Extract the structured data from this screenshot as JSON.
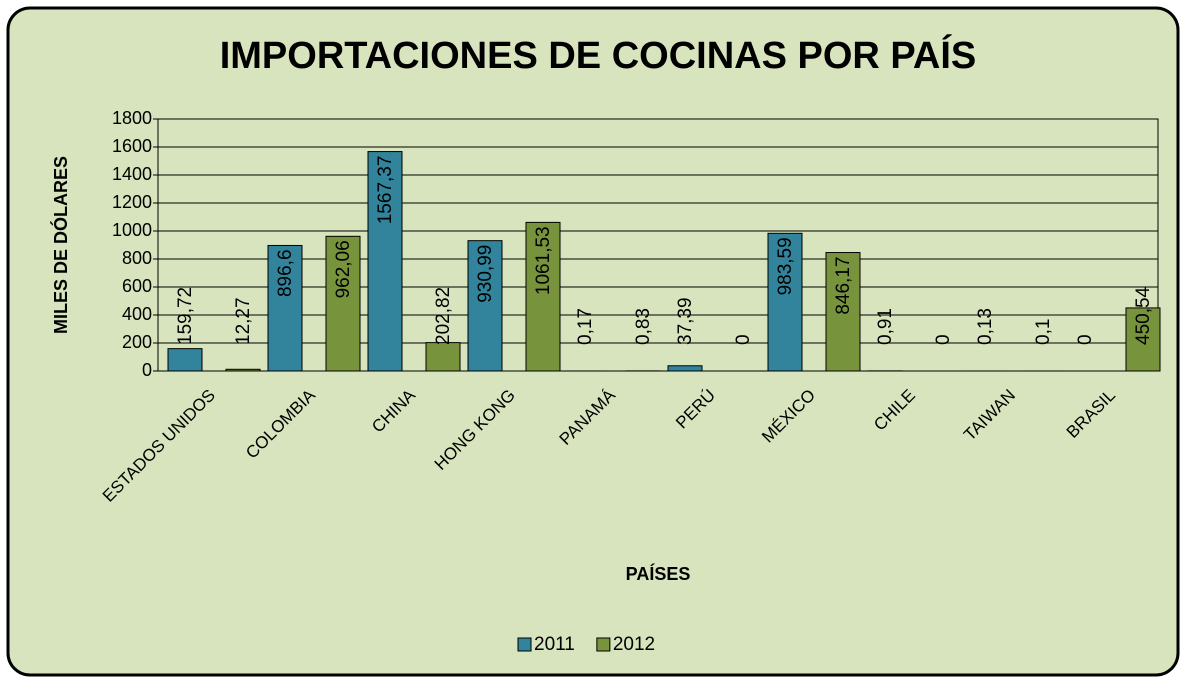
{
  "chart_data": {
    "type": "bar",
    "title": "IMPORTACIONES DE COCINAS POR PAÍS",
    "x_label": "PAÍSES",
    "y_label": "MILES DE DÓLARES",
    "categories": [
      "ESTADOS UNIDOS",
      "COLOMBIA",
      "CHINA",
      "HONG KONG",
      "PANAMÁ",
      "PERÚ",
      "MÉXICO",
      "CHILE",
      "TAIWAN",
      "BRASIL"
    ],
    "series": [
      {
        "name": "2011",
        "color": "#31849b",
        "values": [
          159.72,
          896.6,
          1567.37,
          930.99,
          0.17,
          37.39,
          983.59,
          0.91,
          0.13,
          0
        ],
        "value_labels": [
          "159,72",
          "896,6",
          "1567,37",
          "930,99",
          "0,17",
          "37,39",
          "983,59",
          "0,91",
          "0,13",
          "0"
        ]
      },
      {
        "name": "2012",
        "color": "#77933c",
        "values": [
          12.27,
          962.06,
          202.82,
          1061.53,
          0.83,
          0,
          846.17,
          0,
          0.1,
          450.54
        ],
        "value_labels": [
          "12,27",
          "962,06",
          "202,82",
          "1061,53",
          "0,83",
          "0",
          "846,17",
          "0",
          "0,1",
          "450,54"
        ]
      }
    ],
    "ylim": [
      0,
      1800
    ],
    "yticks": [
      0,
      200,
      400,
      600,
      800,
      1000,
      1200,
      1400,
      1600,
      1800
    ],
    "grid": true,
    "legend": "bottom"
  }
}
